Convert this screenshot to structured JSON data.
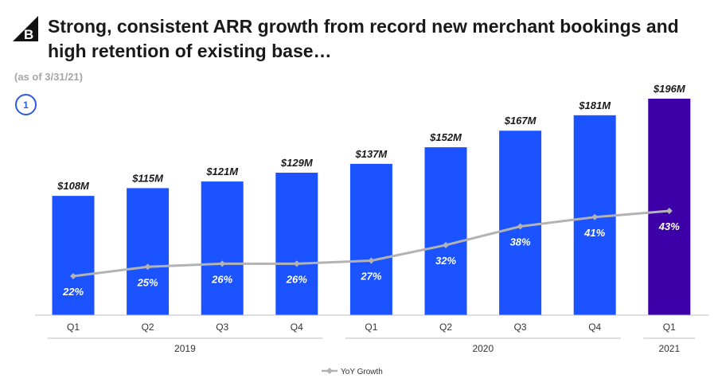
{
  "header": {
    "logo_icon": "bigcommerce-logo-icon",
    "title": "Strong, consistent ARR growth from record new merchant bookings and high retention of existing base…",
    "as_of": "(as of 3/31/21)",
    "badge": "1"
  },
  "chart_data": {
    "type": "bar",
    "categories": [
      "Q1",
      "Q2",
      "Q3",
      "Q4",
      "Q1",
      "Q2",
      "Q3",
      "Q4",
      "Q1"
    ],
    "years": [
      {
        "label": "2019",
        "quarters": 4
      },
      {
        "label": "2020",
        "quarters": 4
      },
      {
        "label": "2021",
        "quarters": 1
      }
    ],
    "series": [
      {
        "values": [
          108,
          115,
          121,
          129,
          137,
          152,
          167,
          181,
          196
        ],
        "labels": [
          "$108M",
          "$115M",
          "$121M",
          "$129M",
          "$137M",
          "$152M",
          "$167M",
          "$181M",
          "$196M"
        ],
        "color": "#1a53ff",
        "highlight_color": "#3d00a8"
      },
      {
        "name": "YoY Growth",
        "type": "line",
        "values": [
          22,
          25,
          26,
          26,
          27,
          32,
          38,
          41,
          43
        ],
        "labels": [
          "22%",
          "25%",
          "26%",
          "26%",
          "27%",
          "32%",
          "38%",
          "41%",
          "43%"
        ],
        "color": "#b3b3b3"
      }
    ],
    "ylim": [
      0,
      200
    ],
    "legend_position": "bottom-center"
  }
}
